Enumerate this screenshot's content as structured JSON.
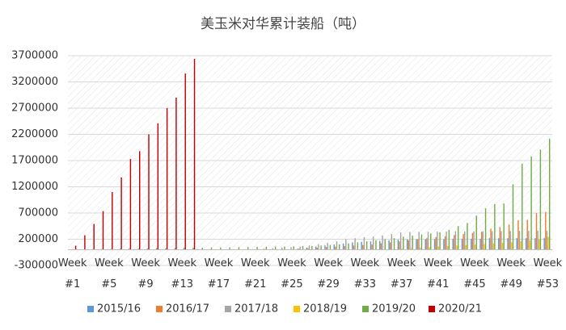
{
  "chart_data": {
    "type": "bar",
    "title": "美玉米对华累计装船（吨）",
    "categories": [
      "Week #1",
      null,
      null,
      null,
      "Week #5",
      null,
      null,
      null,
      "Week #9",
      null,
      null,
      null,
      "Week #13",
      null,
      null,
      null,
      "Week #17",
      null,
      null,
      null,
      "Week #21",
      null,
      null,
      null,
      "Week #25",
      null,
      null,
      null,
      "Week #29",
      null,
      null,
      null,
      "Week #33",
      null,
      null,
      null,
      "Week #37",
      null,
      null,
      null,
      "Week #41",
      null,
      null,
      null,
      "Week #45",
      null,
      null,
      null,
      "Week #49",
      null,
      null,
      null,
      "Week #53"
    ],
    "ylim": [
      -300000,
      3700000
    ],
    "yticks": [
      -300000,
      200000,
      700000,
      1200000,
      1700000,
      2200000,
      2700000,
      3200000,
      3700000
    ],
    "grid": true,
    "legend": "bottom",
    "series": [
      {
        "name": "2015/16",
        "color": "#5b9bd5",
        "values": [
          0,
          0,
          0,
          0,
          0,
          0,
          0,
          0,
          0,
          0,
          0,
          0,
          0,
          0,
          0,
          0,
          0,
          0,
          0,
          0,
          0,
          0,
          0,
          0,
          0,
          20000,
          40000,
          60000,
          80000,
          100000,
          120000,
          140000,
          150000,
          160000,
          170000,
          180000,
          190000,
          200000,
          200000,
          200000,
          200000,
          200000,
          210000,
          210000,
          210000,
          210000,
          220000,
          220000,
          220000,
          220000,
          220000,
          220000,
          220000
        ]
      },
      {
        "name": "2016/17",
        "color": "#ed7d31",
        "values": [
          0,
          0,
          0,
          0,
          0,
          0,
          0,
          0,
          0,
          0,
          0,
          0,
          0,
          0,
          0,
          0,
          0,
          0,
          0,
          0,
          0,
          0,
          0,
          0,
          0,
          20000,
          30000,
          40000,
          50000,
          60000,
          70000,
          80000,
          90000,
          100000,
          120000,
          140000,
          160000,
          180000,
          200000,
          220000,
          240000,
          260000,
          280000,
          300000,
          320000,
          340000,
          400000,
          430000,
          480000,
          560000,
          570000,
          700000,
          720000
        ]
      },
      {
        "name": "2017/18",
        "color": "#a5a5a5",
        "values": [
          0,
          0,
          0,
          0,
          0,
          0,
          0,
          0,
          0,
          0,
          0,
          0,
          0,
          0,
          0,
          0,
          0,
          0,
          0,
          0,
          10000,
          20000,
          30000,
          40000,
          50000,
          60000,
          80000,
          100000,
          130000,
          160000,
          200000,
          220000,
          240000,
          250000,
          270000,
          300000,
          330000,
          340000,
          340000,
          340000,
          345000,
          345000,
          350000,
          350000,
          350000,
          350000,
          355000,
          355000,
          355000,
          360000,
          360000,
          360000,
          360000
        ]
      },
      {
        "name": "2018/19",
        "color": "#ffc000",
        "values": [
          0,
          0,
          0,
          0,
          0,
          0,
          0,
          0,
          0,
          0,
          0,
          0,
          0,
          0,
          0,
          0,
          0,
          0,
          0,
          0,
          0,
          0,
          0,
          0,
          0,
          0,
          0,
          0,
          0,
          0,
          0,
          0,
          0,
          0,
          0,
          10000,
          20000,
          30000,
          40000,
          50000,
          60000,
          70000,
          80000,
          90000,
          100000,
          110000,
          120000,
          130000,
          140000,
          160000,
          180000,
          200000,
          250000
        ]
      },
      {
        "name": "2019/20",
        "color": "#70ad47",
        "values": [
          5000,
          8000,
          10000,
          12000,
          15000,
          18000,
          20000,
          22000,
          25000,
          28000,
          30000,
          32000,
          35000,
          38000,
          40000,
          42000,
          45000,
          47000,
          50000,
          52000,
          55000,
          57000,
          60000,
          62000,
          65000,
          68000,
          72000,
          80000,
          90000,
          100000,
          120000,
          140000,
          160000,
          180000,
          200000,
          220000,
          250000,
          270000,
          290000,
          310000,
          330000,
          380000,
          450000,
          510000,
          650000,
          790000,
          870000,
          880000,
          1250000,
          1640000,
          1780000,
          1910000,
          2120000
        ]
      },
      {
        "name": "2020/21",
        "color": "#c00000",
        "values": [
          77000,
          276000,
          490000,
          736000,
          1100000,
          1380000,
          1730000,
          1880000,
          2200000,
          2410000,
          2700000,
          2900000,
          3360000,
          3640000,
          null,
          null,
          null,
          null,
          null,
          null,
          null,
          null,
          null,
          null,
          null,
          null,
          null,
          null,
          null,
          null,
          null,
          null,
          null,
          null,
          null,
          null,
          null,
          null,
          null,
          null,
          null,
          null,
          null,
          null,
          null,
          null,
          null,
          null,
          null,
          null,
          null,
          null,
          null
        ]
      }
    ]
  }
}
